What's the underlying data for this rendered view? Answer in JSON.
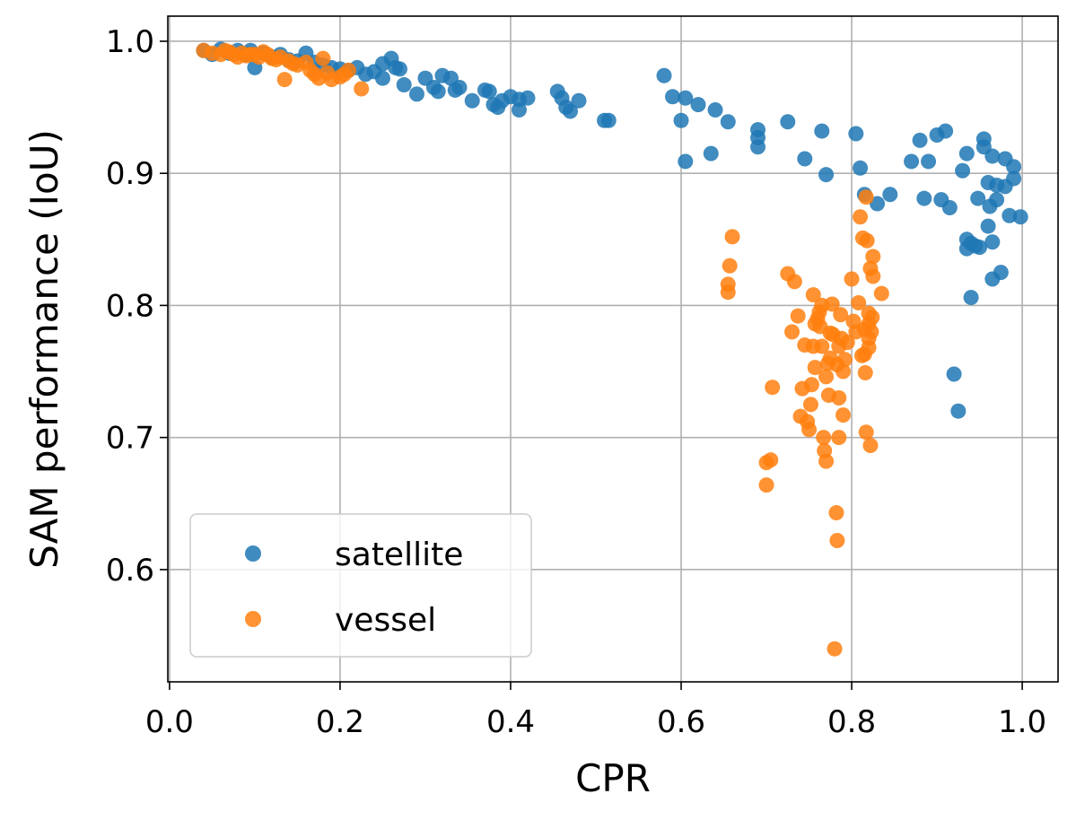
{
  "chart_data": {
    "type": "scatter",
    "title": "",
    "xlabel": "CPR",
    "ylabel": "SAM performance (IoU)",
    "xlim": [
      -0.002,
      1.042
    ],
    "ylim": [
      0.515,
      1.019
    ],
    "xticks": [
      0.0,
      0.2,
      0.4,
      0.6,
      0.8,
      1.0
    ],
    "xtick_labels": [
      "0.0",
      "0.2",
      "0.4",
      "0.6",
      "0.8",
      "1.0"
    ],
    "yticks": [
      0.6,
      0.7,
      0.8,
      0.9,
      1.0
    ],
    "ytick_labels": [
      "0.6",
      "0.7",
      "0.8",
      "0.9",
      "1.0"
    ],
    "grid": true,
    "legend_position": "lower-left",
    "series": [
      {
        "name": "satellite",
        "color": "#1f77b4",
        "points": [
          [
            0.04,
            0.993
          ],
          [
            0.05,
            0.99
          ],
          [
            0.06,
            0.994
          ],
          [
            0.07,
            0.991
          ],
          [
            0.08,
            0.993
          ],
          [
            0.09,
            0.99
          ],
          [
            0.095,
            0.993
          ],
          [
            0.1,
            0.98
          ],
          [
            0.11,
            0.991
          ],
          [
            0.12,
            0.988
          ],
          [
            0.13,
            0.99
          ],
          [
            0.14,
            0.986
          ],
          [
            0.15,
            0.985
          ],
          [
            0.16,
            0.991
          ],
          [
            0.17,
            0.984
          ],
          [
            0.18,
            0.982
          ],
          [
            0.19,
            0.98
          ],
          [
            0.2,
            0.979
          ],
          [
            0.21,
            0.978
          ],
          [
            0.22,
            0.98
          ],
          [
            0.23,
            0.975
          ],
          [
            0.24,
            0.977
          ],
          [
            0.25,
            0.983
          ],
          [
            0.26,
            0.987
          ],
          [
            0.265,
            0.98
          ],
          [
            0.27,
            0.979
          ],
          [
            0.275,
            0.967
          ],
          [
            0.25,
            0.972
          ],
          [
            0.29,
            0.96
          ],
          [
            0.3,
            0.972
          ],
          [
            0.31,
            0.965
          ],
          [
            0.315,
            0.962
          ],
          [
            0.32,
            0.974
          ],
          [
            0.33,
            0.972
          ],
          [
            0.335,
            0.963
          ],
          [
            0.34,
            0.965
          ],
          [
            0.355,
            0.955
          ],
          [
            0.37,
            0.963
          ],
          [
            0.375,
            0.962
          ],
          [
            0.38,
            0.952
          ],
          [
            0.385,
            0.95
          ],
          [
            0.39,
            0.955
          ],
          [
            0.4,
            0.958
          ],
          [
            0.41,
            0.956
          ],
          [
            0.41,
            0.948
          ],
          [
            0.42,
            0.957
          ],
          [
            0.455,
            0.962
          ],
          [
            0.46,
            0.957
          ],
          [
            0.465,
            0.95
          ],
          [
            0.47,
            0.947
          ],
          [
            0.48,
            0.955
          ],
          [
            0.51,
            0.94
          ],
          [
            0.515,
            0.94
          ],
          [
            0.58,
            0.974
          ],
          [
            0.59,
            0.958
          ],
          [
            0.6,
            0.94
          ],
          [
            0.605,
            0.957
          ],
          [
            0.605,
            0.909
          ],
          [
            0.62,
            0.952
          ],
          [
            0.635,
            0.915
          ],
          [
            0.64,
            0.948
          ],
          [
            0.655,
            0.939
          ],
          [
            0.69,
            0.933
          ],
          [
            0.69,
            0.927
          ],
          [
            0.69,
            0.92
          ],
          [
            0.725,
            0.939
          ],
          [
            0.745,
            0.911
          ],
          [
            0.765,
            0.932
          ],
          [
            0.77,
            0.899
          ],
          [
            0.805,
            0.93
          ],
          [
            0.81,
            0.904
          ],
          [
            0.815,
            0.884
          ],
          [
            0.83,
            0.877
          ],
          [
            0.845,
            0.884
          ],
          [
            0.87,
            0.909
          ],
          [
            0.88,
            0.925
          ],
          [
            0.885,
            0.881
          ],
          [
            0.89,
            0.909
          ],
          [
            0.9,
            0.929
          ],
          [
            0.905,
            0.88
          ],
          [
            0.91,
            0.932
          ],
          [
            0.915,
            0.874
          ],
          [
            0.92,
            0.748
          ],
          [
            0.925,
            0.72
          ],
          [
            0.93,
            0.902
          ],
          [
            0.935,
            0.915
          ],
          [
            0.935,
            0.85
          ],
          [
            0.935,
            0.843
          ],
          [
            0.94,
            0.847
          ],
          [
            0.94,
            0.806
          ],
          [
            0.945,
            0.845
          ],
          [
            0.948,
            0.881
          ],
          [
            0.95,
            0.844
          ],
          [
            0.955,
            0.926
          ],
          [
            0.955,
            0.92
          ],
          [
            0.96,
            0.893
          ],
          [
            0.96,
            0.86
          ],
          [
            0.962,
            0.875
          ],
          [
            0.965,
            0.913
          ],
          [
            0.965,
            0.848
          ],
          [
            0.965,
            0.82
          ],
          [
            0.97,
            0.891
          ],
          [
            0.97,
            0.88
          ],
          [
            0.975,
            0.825
          ],
          [
            0.98,
            0.911
          ],
          [
            0.98,
            0.89
          ],
          [
            0.985,
            0.868
          ],
          [
            0.99,
            0.905
          ],
          [
            0.99,
            0.896
          ],
          [
            0.998,
            0.867
          ]
        ]
      },
      {
        "name": "vessel",
        "color": "#ff7f0e",
        "points": [
          [
            0.04,
            0.993
          ],
          [
            0.05,
            0.991
          ],
          [
            0.06,
            0.99
          ],
          [
            0.065,
            0.993
          ],
          [
            0.07,
            0.992
          ],
          [
            0.075,
            0.99
          ],
          [
            0.08,
            0.988
          ],
          [
            0.085,
            0.991
          ],
          [
            0.09,
            0.989
          ],
          [
            0.095,
            0.99
          ],
          [
            0.1,
            0.99
          ],
          [
            0.105,
            0.988
          ],
          [
            0.11,
            0.992
          ],
          [
            0.115,
            0.99
          ],
          [
            0.12,
            0.987
          ],
          [
            0.125,
            0.986
          ],
          [
            0.13,
            0.988
          ],
          [
            0.135,
            0.971
          ],
          [
            0.14,
            0.985
          ],
          [
            0.145,
            0.983
          ],
          [
            0.15,
            0.982
          ],
          [
            0.16,
            0.984
          ],
          [
            0.165,
            0.978
          ],
          [
            0.17,
            0.975
          ],
          [
            0.175,
            0.972
          ],
          [
            0.18,
            0.987
          ],
          [
            0.185,
            0.976
          ],
          [
            0.19,
            0.971
          ],
          [
            0.2,
            0.973
          ],
          [
            0.205,
            0.975
          ],
          [
            0.21,
            0.978
          ],
          [
            0.225,
            0.964
          ],
          [
            0.655,
            0.816
          ],
          [
            0.655,
            0.81
          ],
          [
            0.657,
            0.83
          ],
          [
            0.66,
            0.852
          ],
          [
            0.7,
            0.664
          ],
          [
            0.7,
            0.681
          ],
          [
            0.705,
            0.683
          ],
          [
            0.707,
            0.738
          ],
          [
            0.725,
            0.824
          ],
          [
            0.73,
            0.78
          ],
          [
            0.733,
            0.818
          ],
          [
            0.737,
            0.792
          ],
          [
            0.74,
            0.716
          ],
          [
            0.742,
            0.737
          ],
          [
            0.745,
            0.77
          ],
          [
            0.748,
            0.712
          ],
          [
            0.75,
            0.706
          ],
          [
            0.752,
            0.725
          ],
          [
            0.753,
            0.74
          ],
          [
            0.755,
            0.808
          ],
          [
            0.755,
            0.769
          ],
          [
            0.757,
            0.786
          ],
          [
            0.757,
            0.753
          ],
          [
            0.76,
            0.79
          ],
          [
            0.762,
            0.795
          ],
          [
            0.763,
            0.784
          ],
          [
            0.765,
            0.8
          ],
          [
            0.765,
            0.769
          ],
          [
            0.767,
            0.7
          ],
          [
            0.768,
            0.69
          ],
          [
            0.77,
            0.682
          ],
          [
            0.77,
            0.746
          ],
          [
            0.772,
            0.756
          ],
          [
            0.773,
            0.732
          ],
          [
            0.775,
            0.779
          ],
          [
            0.775,
            0.76
          ],
          [
            0.777,
            0.801
          ],
          [
            0.778,
            0.778
          ],
          [
            0.78,
            0.54
          ],
          [
            0.782,
            0.643
          ],
          [
            0.783,
            0.622
          ],
          [
            0.783,
            0.755
          ],
          [
            0.785,
            0.7
          ],
          [
            0.785,
            0.73
          ],
          [
            0.785,
            0.769
          ],
          [
            0.787,
            0.793
          ],
          [
            0.788,
            0.775
          ],
          [
            0.79,
            0.717
          ],
          [
            0.79,
            0.75
          ],
          [
            0.792,
            0.759
          ],
          [
            0.795,
            0.772
          ],
          [
            0.8,
            0.82
          ],
          [
            0.802,
            0.788
          ],
          [
            0.805,
            0.78
          ],
          [
            0.808,
            0.802
          ],
          [
            0.81,
            0.867
          ],
          [
            0.812,
            0.762
          ],
          [
            0.813,
            0.851
          ],
          [
            0.815,
            0.782
          ],
          [
            0.815,
            0.763
          ],
          [
            0.816,
            0.749
          ],
          [
            0.817,
            0.882
          ],
          [
            0.817,
            0.704
          ],
          [
            0.818,
            0.849
          ],
          [
            0.82,
            0.794
          ],
          [
            0.82,
            0.786
          ],
          [
            0.82,
            0.775
          ],
          [
            0.82,
            0.768
          ],
          [
            0.822,
            0.828
          ],
          [
            0.822,
            0.694
          ],
          [
            0.823,
            0.78
          ],
          [
            0.824,
            0.791
          ],
          [
            0.825,
            0.837
          ],
          [
            0.825,
            0.822
          ],
          [
            0.835,
            0.809
          ]
        ]
      }
    ]
  }
}
